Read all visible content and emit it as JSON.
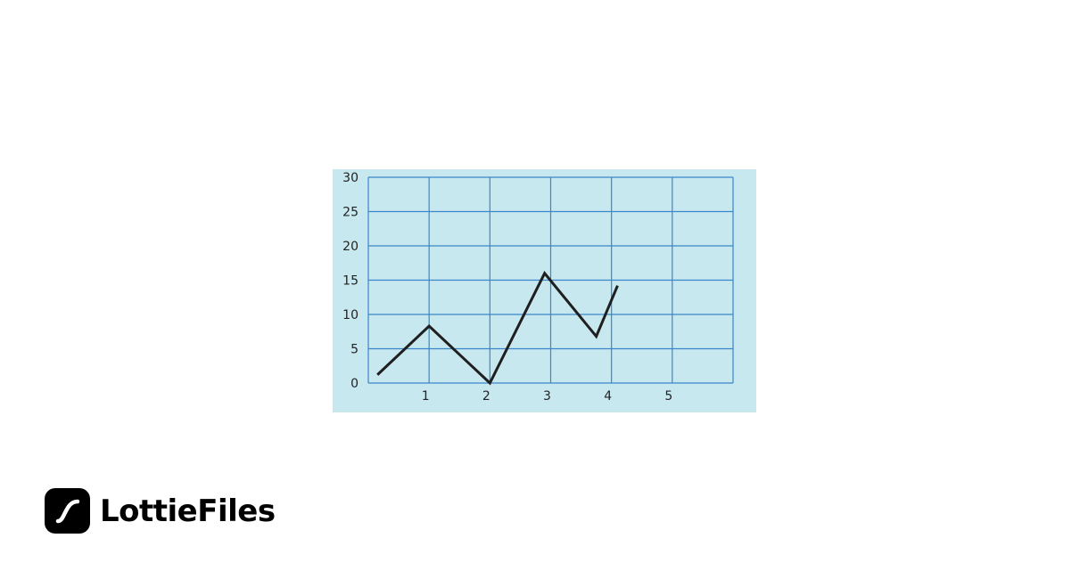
{
  "chart_data": {
    "type": "line",
    "title": "",
    "xlabel": "",
    "ylabel": "",
    "xlim": [
      0,
      6
    ],
    "ylim": [
      0,
      30
    ],
    "x_ticks": [
      1,
      2,
      3,
      4,
      5
    ],
    "y_ticks": [
      0,
      5,
      10,
      15,
      20,
      25,
      30
    ],
    "grid": true,
    "series": [
      {
        "x": [
          0.15,
          1.0,
          2.0,
          2.9,
          3.75,
          4.1
        ],
        "y": [
          1.2,
          8.3,
          0,
          16,
          6.8,
          14.2
        ]
      }
    ],
    "colors": {
      "background": "#c8e8f0",
      "grid": "#3a86c8",
      "line": "#1f1f1f"
    }
  },
  "brand": {
    "name": "LottieFiles"
  }
}
